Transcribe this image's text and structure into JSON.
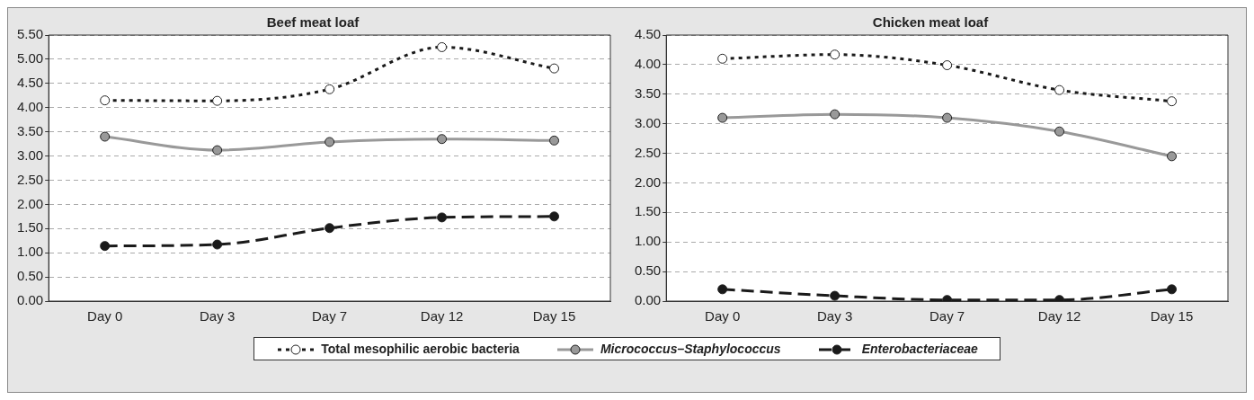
{
  "chart_data": [
    {
      "type": "line",
      "title": "Beef meat loaf",
      "categories": [
        "Day 0",
        "Day 3",
        "Day 7",
        "Day 12",
        "Day 15"
      ],
      "ylim": [
        0,
        5.5
      ],
      "yticks": [
        {
          "value": 0,
          "label": "0.00"
        },
        {
          "value": 0.5,
          "label": "0.50"
        },
        {
          "value": 1,
          "label": "1.00"
        },
        {
          "value": 1.5,
          "label": "1.50"
        },
        {
          "value": 2,
          "label": "2.00"
        },
        {
          "value": 2.5,
          "label": "2.50"
        },
        {
          "value": 3,
          "label": "3.00"
        },
        {
          "value": 3.5,
          "label": "3.50"
        },
        {
          "value": 4,
          "label": "4.00"
        },
        {
          "value": 4.5,
          "label": "4.50"
        },
        {
          "value": 5,
          "label": "5.00"
        },
        {
          "value": 5.5,
          "label": "5.50"
        }
      ],
      "grid": "y",
      "legend": "bottom",
      "marker": "circle",
      "series": [
        {
          "name": "Total mesophilic aerobic bacteria",
          "color": "#1a1a1a",
          "line_style": "dotted",
          "values": [
            4.15,
            4.14,
            4.38,
            5.25,
            4.81
          ]
        },
        {
          "name": "Micrococcus–Staphylococcus",
          "color": "#999999",
          "line_style": "solid",
          "values": [
            3.4,
            3.12,
            3.29,
            3.35,
            3.32
          ]
        },
        {
          "name": "Enterobacteriaceae",
          "color": "#1a1a1a",
          "line_style": "dashed",
          "values": [
            1.14,
            1.17,
            1.51,
            1.73,
            1.75
          ]
        }
      ]
    },
    {
      "type": "line",
      "title": "Chicken meat loaf",
      "categories": [
        "Day 0",
        "Day 3",
        "Day 7",
        "Day 12",
        "Day 15"
      ],
      "ylim": [
        0,
        4.5
      ],
      "yticks": [
        {
          "value": 0,
          "label": "0.00"
        },
        {
          "value": 0.5,
          "label": "0.50"
        },
        {
          "value": 1,
          "label": "1.00"
        },
        {
          "value": 1.5,
          "label": "1.50"
        },
        {
          "value": 2,
          "label": "2.00"
        },
        {
          "value": 2.5,
          "label": "2.50"
        },
        {
          "value": 3,
          "label": "3.00"
        },
        {
          "value": 3.5,
          "label": "3.50"
        },
        {
          "value": 4,
          "label": "4.00"
        },
        {
          "value": 4.5,
          "label": "4.50"
        }
      ],
      "grid": "y",
      "marker": "circle",
      "series": [
        {
          "color": "#1a1a1a",
          "line_style": "dotted",
          "values": [
            4.1,
            4.17,
            3.99,
            3.57,
            3.38
          ]
        },
        {
          "color": "#999999",
          "line_style": "solid",
          "values": [
            3.1,
            3.16,
            3.1,
            2.87,
            2.45
          ]
        },
        {
          "color": "#1a1a1a",
          "line_style": "dashed",
          "values": [
            0.2,
            0.09,
            0.02,
            0.02,
            0.2
          ]
        }
      ]
    }
  ]
}
